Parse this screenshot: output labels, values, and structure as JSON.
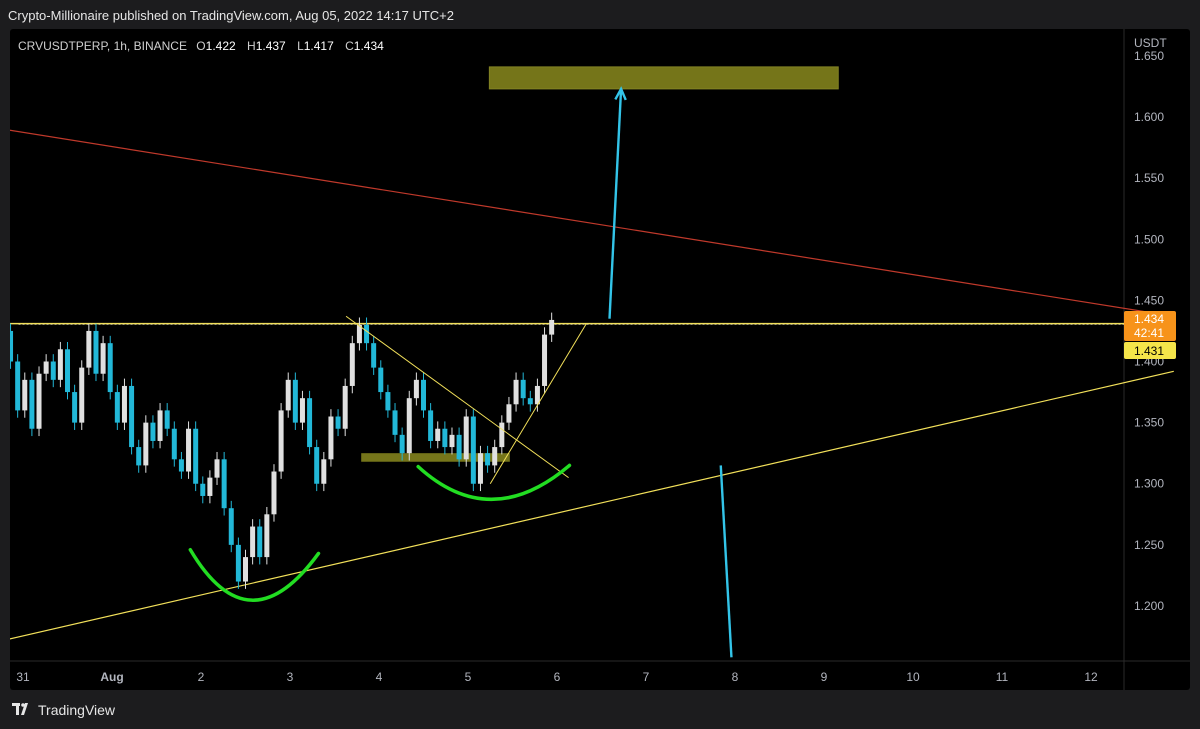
{
  "header": {
    "published": "Crypto-Millionaire published on TradingView.com, Aug 05, 2022 14:17 UTC+2"
  },
  "legend": {
    "symbol": "CRVUSDTPERP, 1h, BINANCE",
    "o_label": "O",
    "o_value": "1.422",
    "h_label": "H",
    "h_value": "1.437",
    "l_label": "L",
    "l_value": "1.417",
    "c_label": "C",
    "c_value": "1.434"
  },
  "footer": {
    "brand": "TradingView"
  },
  "colors": {
    "up": "#e0e0e0",
    "down": "#22b8d8",
    "yellow": "#f2e05a",
    "red": "#c0392b",
    "green": "#22dd22",
    "zone": "#8a8a1e",
    "arrow": "#33c4e8"
  },
  "chart_data": {
    "type": "candlestick",
    "currency": "USDT",
    "ylim": [
      1.155,
      1.672
    ],
    "y_ticks": [
      "1.650",
      "1.600",
      "1.550",
      "1.500",
      "1.450",
      "1.400",
      "1.350",
      "1.300",
      "1.250",
      "1.200"
    ],
    "x_ticks": [
      {
        "label": "31",
        "t": -0.3
      },
      {
        "label": "Aug",
        "t": 0.7
      },
      {
        "label": "2",
        "t": 1.7
      },
      {
        "label": "3",
        "t": 2.7
      },
      {
        "label": "4",
        "t": 3.7
      },
      {
        "label": "5",
        "t": 4.7
      },
      {
        "label": "6",
        "t": 5.7
      },
      {
        "label": "7",
        "t": 6.7
      },
      {
        "label": "8",
        "t": 7.7
      },
      {
        "label": "9",
        "t": 8.7
      },
      {
        "label": "10",
        "t": 9.7
      },
      {
        "label": "11",
        "t": 10.7
      },
      {
        "label": "12",
        "t": 11.7
      }
    ],
    "price_badges": {
      "last": "1.434",
      "countdown": "42:41",
      "level": "1.431"
    },
    "candles": [
      [
        -0.6,
        1.462,
        1.478
      ],
      [
        -0.52,
        1.478,
        1.425
      ],
      [
        -0.44,
        1.425,
        1.4
      ],
      [
        -0.36,
        1.4,
        1.36
      ],
      [
        -0.28,
        1.36,
        1.385
      ],
      [
        -0.2,
        1.385,
        1.345
      ],
      [
        -0.12,
        1.345,
        1.39
      ],
      [
        -0.04,
        1.39,
        1.4
      ],
      [
        0.04,
        1.4,
        1.385
      ],
      [
        0.12,
        1.385,
        1.41
      ],
      [
        0.2,
        1.41,
        1.375
      ],
      [
        0.28,
        1.375,
        1.35
      ],
      [
        0.36,
        1.35,
        1.395
      ],
      [
        0.44,
        1.395,
        1.425
      ],
      [
        0.52,
        1.425,
        1.39
      ],
      [
        0.6,
        1.39,
        1.415
      ],
      [
        0.68,
        1.415,
        1.375
      ],
      [
        0.76,
        1.375,
        1.35
      ],
      [
        0.84,
        1.35,
        1.38
      ],
      [
        0.92,
        1.38,
        1.33
      ],
      [
        1.0,
        1.33,
        1.315
      ],
      [
        1.08,
        1.315,
        1.35
      ],
      [
        1.16,
        1.35,
        1.335
      ],
      [
        1.24,
        1.335,
        1.36
      ],
      [
        1.32,
        1.36,
        1.345
      ],
      [
        1.4,
        1.345,
        1.32
      ],
      [
        1.48,
        1.32,
        1.31
      ],
      [
        1.56,
        1.31,
        1.345
      ],
      [
        1.64,
        1.345,
        1.3
      ],
      [
        1.72,
        1.3,
        1.29
      ],
      [
        1.8,
        1.29,
        1.305
      ],
      [
        1.88,
        1.305,
        1.32
      ],
      [
        1.96,
        1.32,
        1.28
      ],
      [
        2.04,
        1.28,
        1.25
      ],
      [
        2.12,
        1.25,
        1.22
      ],
      [
        2.2,
        1.22,
        1.24
      ],
      [
        2.28,
        1.24,
        1.265
      ],
      [
        2.36,
        1.265,
        1.24
      ],
      [
        2.44,
        1.24,
        1.275
      ],
      [
        2.52,
        1.275,
        1.31
      ],
      [
        2.6,
        1.31,
        1.36
      ],
      [
        2.68,
        1.36,
        1.385
      ],
      [
        2.76,
        1.385,
        1.35
      ],
      [
        2.84,
        1.35,
        1.37
      ],
      [
        2.92,
        1.37,
        1.33
      ],
      [
        3.0,
        1.33,
        1.3
      ],
      [
        3.08,
        1.3,
        1.32
      ],
      [
        3.16,
        1.32,
        1.355
      ],
      [
        3.24,
        1.355,
        1.345
      ],
      [
        3.32,
        1.345,
        1.38
      ],
      [
        3.4,
        1.38,
        1.415
      ],
      [
        3.48,
        1.415,
        1.43
      ],
      [
        3.56,
        1.43,
        1.415
      ],
      [
        3.64,
        1.415,
        1.395
      ],
      [
        3.72,
        1.395,
        1.375
      ],
      [
        3.8,
        1.375,
        1.36
      ],
      [
        3.88,
        1.36,
        1.34
      ],
      [
        3.96,
        1.34,
        1.325
      ],
      [
        4.04,
        1.325,
        1.37
      ],
      [
        4.12,
        1.37,
        1.385
      ],
      [
        4.2,
        1.385,
        1.36
      ],
      [
        4.28,
        1.36,
        1.335
      ],
      [
        4.36,
        1.335,
        1.345
      ],
      [
        4.44,
        1.345,
        1.33
      ],
      [
        4.52,
        1.33,
        1.34
      ],
      [
        4.6,
        1.34,
        1.32
      ],
      [
        4.68,
        1.32,
        1.355
      ],
      [
        4.76,
        1.355,
        1.3
      ],
      [
        4.84,
        1.3,
        1.325
      ],
      [
        4.92,
        1.325,
        1.315
      ],
      [
        5.0,
        1.315,
        1.33
      ],
      [
        5.08,
        1.33,
        1.35
      ],
      [
        5.16,
        1.35,
        1.365
      ],
      [
        5.24,
        1.365,
        1.385
      ],
      [
        5.32,
        1.385,
        1.37
      ],
      [
        5.4,
        1.37,
        1.365
      ],
      [
        5.48,
        1.365,
        1.38
      ],
      [
        5.56,
        1.38,
        1.422
      ],
      [
        5.64,
        1.422,
        1.434
      ]
    ],
    "annotations": {
      "neckline": 1.431,
      "target_zone": {
        "t0": 4.94,
        "t1": 8.86,
        "y0": 1.623,
        "y1": 1.641
      },
      "support_zone": {
        "t0": 3.5,
        "t1": 5.17,
        "y0": 1.318,
        "y1": 1.325
      },
      "red_line": {
        "t0": -0.69,
        "y0": 1.592,
        "t1": 12.63,
        "y1": 1.437
      },
      "rising_line": {
        "t0": -0.69,
        "y0": 1.169,
        "t1": 12.63,
        "y1": 1.392
      },
      "up_arrow": {
        "t0": 6.29,
        "y0": 1.435,
        "t1": 6.42,
        "y1": 1.623
      },
      "down_arrow": {
        "t0": 7.54,
        "y0": 1.315,
        "t1": 7.66,
        "y1": 1.158
      }
    }
  }
}
